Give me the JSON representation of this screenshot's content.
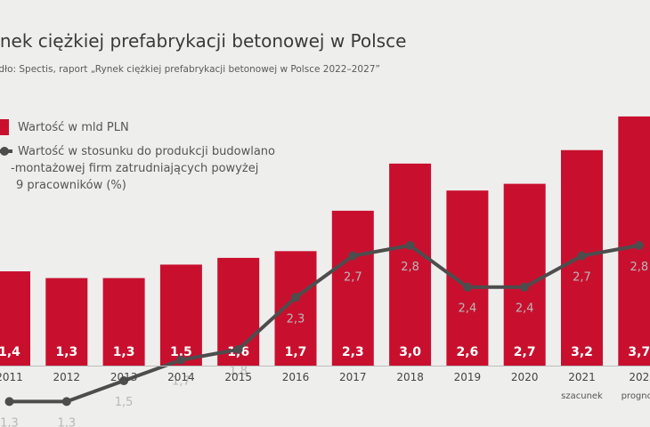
{
  "chart_data": {
    "type": "bar",
    "title": "ynek ciężkiej prefabrykacji betonowej w Polsce",
    "subtitle": "ódło: Spectis, raport „Rynek ciężkiej prefabrykacji betonowej w Polsce 2022–2027”",
    "categories": [
      "2011",
      "2012",
      "2013",
      "2014",
      "2015",
      "2016",
      "2017",
      "2018",
      "2019",
      "2020",
      "2021",
      "202"
    ],
    "category_notes": [
      "",
      "",
      "",
      "",
      "",
      "",
      "",
      "",
      "",
      "",
      "szacunek",
      "prognoz"
    ],
    "series": [
      {
        "name": "Wartość w mld PLN",
        "type": "bar",
        "color": "#c8102e",
        "values": [
          1.4,
          1.3,
          1.3,
          1.5,
          1.6,
          1.7,
          2.3,
          3.0,
          2.6,
          2.7,
          3.2,
          3.7
        ],
        "labels": [
          "1,4",
          "1,3",
          "1,3",
          "1,5",
          "1,6",
          "1,7",
          "2,3",
          "3,0",
          "2,6",
          "2,7",
          "3,2",
          "3,7"
        ]
      },
      {
        "name": "Wartość w stosunku do produkcji budowlano -montażowej firm zatrudniających powyżej 9 pracowników (%)",
        "type": "line",
        "color": "#4d4d4d",
        "values": [
          1.3,
          1.3,
          1.5,
          1.7,
          1.8,
          2.3,
          2.7,
          2.8,
          2.4,
          2.4,
          2.7,
          2.8
        ],
        "labels": [
          "1,3",
          "1,3",
          "1,5",
          "1,7",
          "1,8",
          "2,3",
          "2,7",
          "2,8",
          "2,4",
          "2,4",
          "2,7",
          "2,8"
        ]
      }
    ],
    "legend": {
      "position": "top-left",
      "bar_label": "Wartość w mld PLN",
      "line_label_lines": [
        "Wartość w stosunku do produkcji budowlano",
        "-montażowej firm zatrudniających powyżej",
        "9 pracowników (%)"
      ]
    },
    "grid": false
  },
  "colors": {
    "bar": "#c8102e",
    "line": "#4d4d4d",
    "background": "#eeeeed"
  }
}
